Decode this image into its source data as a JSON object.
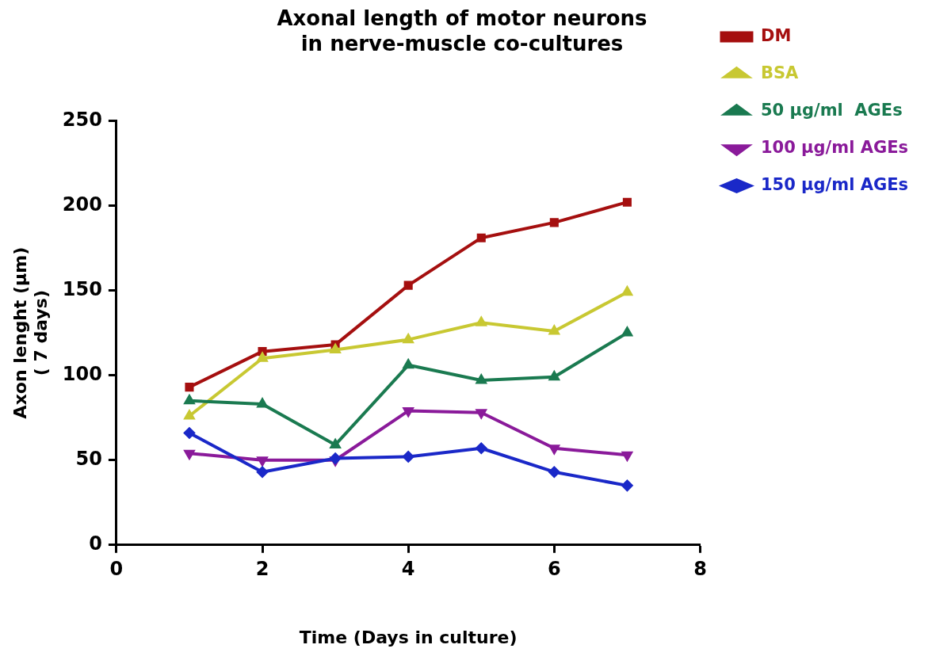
{
  "chart_data": {
    "type": "line",
    "title": "Axonal length of motor neurons\nin nerve-muscle co-cultures",
    "xlabel": "Time (Days in culture)",
    "ylabel": "Axon lenght (μm)\n( 7 days)",
    "x": [
      1,
      2,
      3,
      4,
      5,
      6,
      7
    ],
    "series": [
      {
        "name": "DM",
        "color": "#a50f0f",
        "marker": "square",
        "values": [
          93,
          114,
          118,
          153,
          181,
          190,
          202
        ]
      },
      {
        "name": "BSA",
        "color": "#c8c832",
        "marker": "triangle",
        "values": [
          76,
          110,
          115,
          121,
          131,
          126,
          149
        ]
      },
      {
        "name": "50 μg/ml  AGEs",
        "color": "#1a7a50",
        "marker": "triangle",
        "values": [
          85,
          83,
          59,
          106,
          97,
          99,
          125
        ]
      },
      {
        "name": "100 μg/ml AGEs",
        "color": "#8a1a9a",
        "marker": "triangle-down",
        "values": [
          54,
          50,
          50,
          79,
          78,
          57,
          53
        ]
      },
      {
        "name": "150 μg/ml AGEs",
        "color": "#1a28c8",
        "marker": "diamond",
        "values": [
          66,
          43,
          51,
          52,
          57,
          43,
          35
        ]
      }
    ],
    "xlim": [
      0,
      8
    ],
    "xticks": [
      0,
      2,
      4,
      6,
      8
    ],
    "ylim": [
      0,
      250
    ],
    "yticks": [
      0,
      50,
      100,
      150,
      200,
      250
    ],
    "grid": false,
    "legend": "top right",
    "line_style": "solid"
  }
}
